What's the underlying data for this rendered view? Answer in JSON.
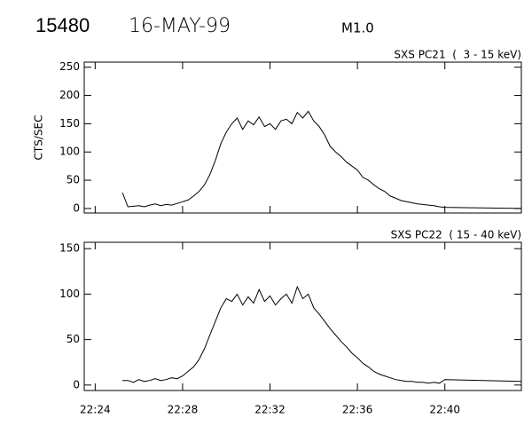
{
  "header": {
    "id": "15480",
    "date": "16-MAY-99",
    "class": "M1.0"
  },
  "chart_data": [
    {
      "type": "line",
      "title": "SXS PC21  (  3 - 15 keV)",
      "y_label": "CTS/SEC",
      "color": "#000000",
      "x": [
        1345.25,
        1345.5,
        1345.75,
        1346,
        1346.25,
        1346.5,
        1346.75,
        1347,
        1347.25,
        1347.5,
        1347.75,
        1348,
        1348.25,
        1348.5,
        1348.75,
        1349,
        1349.25,
        1349.5,
        1349.75,
        1350,
        1350.25,
        1350.5,
        1350.75,
        1351,
        1351.25,
        1351.5,
        1351.75,
        1352,
        1352.25,
        1352.5,
        1352.75,
        1353,
        1353.25,
        1353.5,
        1353.75,
        1354,
        1354.25,
        1354.5,
        1354.75,
        1355,
        1355.25,
        1355.5,
        1355.75,
        1356,
        1356.25,
        1356.5,
        1356.75,
        1357,
        1357.25,
        1357.5,
        1357.75,
        1358,
        1358.25,
        1358.5,
        1358.75,
        1359,
        1359.25,
        1359.5,
        1359.75,
        1360,
        1363.5
      ],
      "values": [
        28,
        3,
        4,
        5,
        3,
        6,
        8,
        5,
        7,
        6,
        9,
        12,
        15,
        22,
        30,
        42,
        60,
        85,
        115,
        135,
        150,
        160,
        140,
        155,
        148,
        162,
        145,
        150,
        140,
        155,
        158,
        150,
        170,
        160,
        172,
        155,
        145,
        130,
        110,
        100,
        92,
        82,
        75,
        68,
        55,
        50,
        42,
        35,
        30,
        22,
        18,
        14,
        12,
        10,
        8,
        7,
        6,
        5,
        3,
        2,
        0
      ],
      "xlim": [
        1343.5,
        1363.5
      ],
      "ylim": [
        -8,
        259
      ],
      "yticks": [
        0,
        50,
        100,
        150,
        200,
        250
      ]
    },
    {
      "type": "line",
      "title": "SXS PC22  ( 15 - 40 keV)",
      "color": "#000000",
      "x": [
        1345.25,
        1345.5,
        1345.75,
        1346,
        1346.25,
        1346.5,
        1346.75,
        1347,
        1347.25,
        1347.5,
        1347.75,
        1348,
        1348.25,
        1348.5,
        1348.75,
        1349,
        1349.25,
        1349.5,
        1349.75,
        1350,
        1350.25,
        1350.5,
        1350.75,
        1351,
        1351.25,
        1351.5,
        1351.75,
        1352,
        1352.25,
        1352.5,
        1352.75,
        1353,
        1353.25,
        1353.5,
        1353.75,
        1354,
        1354.25,
        1354.5,
        1354.75,
        1355,
        1355.25,
        1355.5,
        1355.75,
        1356,
        1356.25,
        1356.5,
        1356.75,
        1357,
        1357.25,
        1357.5,
        1357.75,
        1358,
        1358.25,
        1358.5,
        1358.75,
        1359,
        1359.25,
        1359.5,
        1359.75,
        1360,
        1363.5
      ],
      "values": [
        5,
        5,
        3,
        6,
        4,
        5,
        7,
        5,
        6,
        8,
        7,
        10,
        15,
        20,
        28,
        40,
        55,
        70,
        85,
        95,
        92,
        100,
        88,
        97,
        90,
        105,
        92,
        98,
        88,
        95,
        100,
        90,
        108,
        95,
        100,
        85,
        78,
        70,
        62,
        55,
        48,
        42,
        35,
        30,
        24,
        20,
        15,
        12,
        10,
        8,
        6,
        5,
        4,
        4,
        3,
        3,
        2,
        3,
        2,
        6,
        4
      ],
      "xlim": [
        1343.5,
        1363.5
      ],
      "ylim": [
        -6,
        157
      ],
      "yticks": [
        0,
        50,
        100,
        150
      ],
      "xticks": [
        {
          "value": 1344,
          "label": "22:24"
        },
        {
          "value": 1348,
          "label": "22:28"
        },
        {
          "value": 1352,
          "label": "22:32"
        },
        {
          "value": 1356,
          "label": "22:36"
        },
        {
          "value": 1360,
          "label": "22:40"
        }
      ]
    }
  ]
}
